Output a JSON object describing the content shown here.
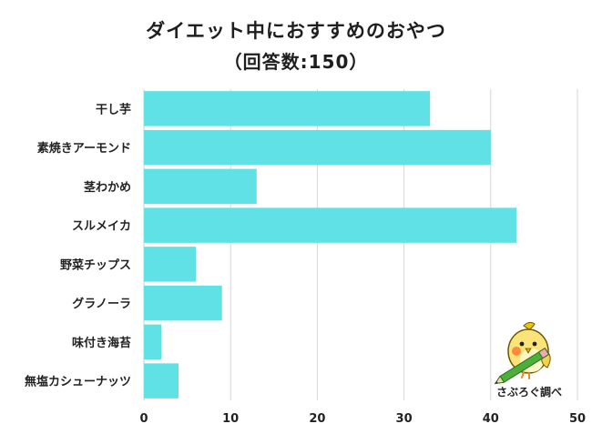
{
  "title": "ダイエット中におすすめのおやつ",
  "subtitle": "（回答数:150）",
  "brand": {
    "label": "さぶろぐ調べ"
  },
  "colors": {
    "bar": "#5fe1e6",
    "grid": "#d6d6d6",
    "axis": "#cfcfcf"
  },
  "chart_data": {
    "type": "bar",
    "orientation": "horizontal",
    "title": "ダイエット中におすすめのおやつ",
    "subtitle": "（回答数:150）",
    "categories": [
      "干し芋",
      "素焼きアーモンド",
      "茎わかめ",
      "スルメイカ",
      "野菜チップス",
      "グラノーラ",
      "味付き海苔",
      "無塩カシューナッツ"
    ],
    "values": [
      33,
      40,
      13,
      43,
      6,
      9,
      2,
      4
    ],
    "xlim": [
      0,
      50
    ],
    "xticks": [
      0,
      10,
      20,
      30,
      40,
      50
    ],
    "grid": true,
    "legend": "none"
  }
}
